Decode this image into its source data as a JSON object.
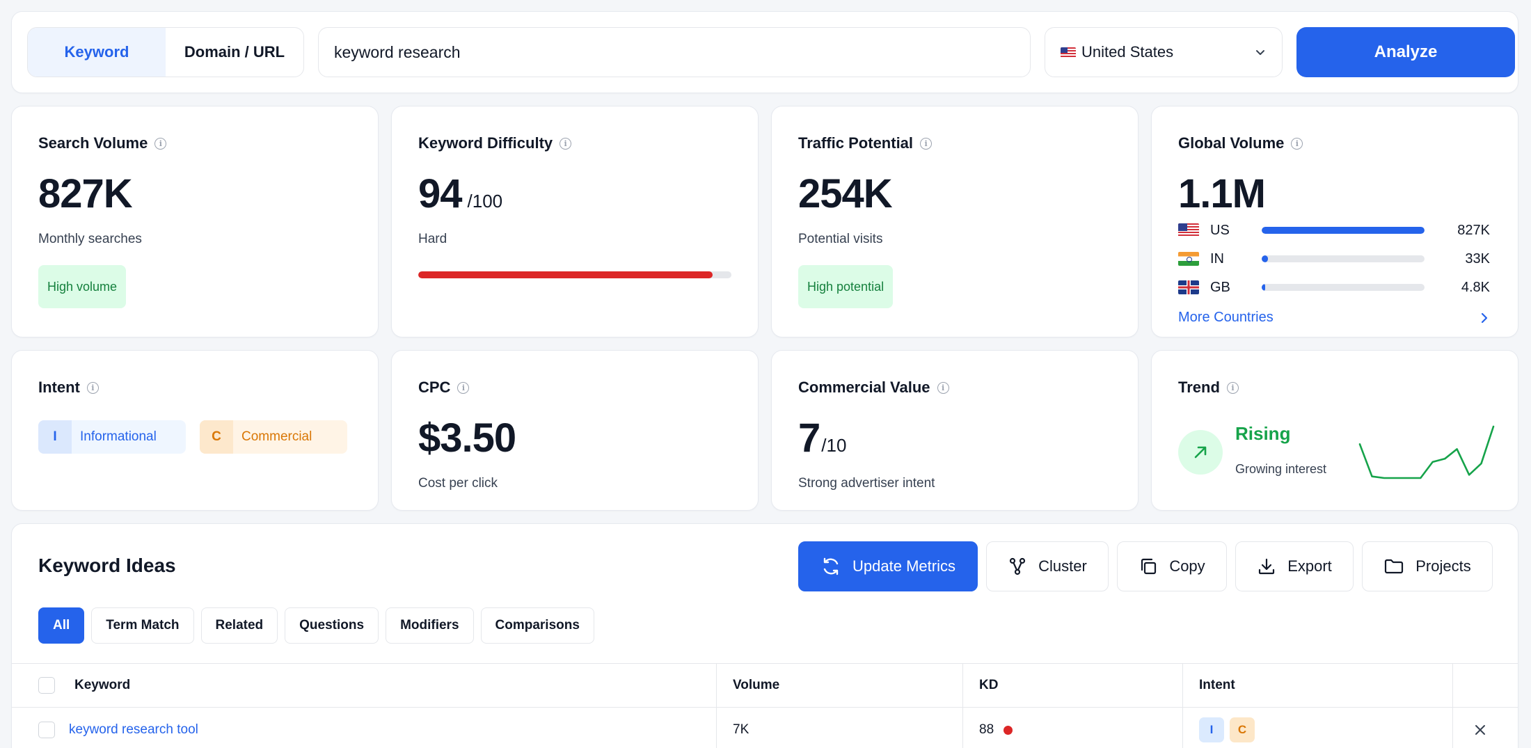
{
  "search": {
    "modes": [
      "Keyword",
      "Domain / URL"
    ],
    "active_mode": "Keyword",
    "query": "keyword research",
    "country": "United States",
    "analyze_label": "Analyze"
  },
  "metrics": {
    "search_volume": {
      "label": "Search Volume",
      "value": "827K",
      "sub": "Monthly searches",
      "badge": "High volume"
    },
    "keyword_difficulty": {
      "label": "Keyword Difficulty",
      "value": "94",
      "of": "/100",
      "sub": "Hard",
      "score": 94,
      "max": 100
    },
    "traffic_potential": {
      "label": "Traffic Potential",
      "value": "254K",
      "sub": "Potential visits",
      "badge": "High potential"
    },
    "global_volume": {
      "label": "Global Volume",
      "value": "1.1M",
      "countries": [
        {
          "code": "US",
          "value": "827K",
          "share": 1.0
        },
        {
          "code": "IN",
          "value": "33K",
          "share": 0.04
        },
        {
          "code": "GB",
          "value": "4.8K",
          "share": 0.006
        }
      ],
      "more_label": "More Countries"
    },
    "intent": {
      "label": "Intent",
      "tags": [
        {
          "letter": "I",
          "name": "Informational"
        },
        {
          "letter": "C",
          "name": "Commercial"
        }
      ]
    },
    "cpc": {
      "label": "CPC",
      "value": "$3.50",
      "sub": "Cost per click"
    },
    "commercial_value": {
      "label": "Commercial Value",
      "value": "7",
      "of": "/10",
      "sub": "Strong advertiser intent"
    },
    "trend": {
      "label": "Trend",
      "status": "Rising",
      "sub": "Growing interest",
      "sparkline": [
        46,
        6,
        4,
        4,
        4,
        4,
        24,
        28,
        40,
        8,
        22,
        68
      ]
    }
  },
  "ideas": {
    "title": "Keyword Ideas",
    "toolbar": {
      "update": "Update Metrics",
      "cluster": "Cluster",
      "copy": "Copy",
      "export": "Export",
      "projects": "Projects"
    },
    "filters": [
      "All",
      "Term Match",
      "Related",
      "Questions",
      "Modifiers",
      "Comparisons"
    ],
    "active_filter": "All",
    "columns": {
      "keyword": "Keyword",
      "volume": "Volume",
      "kd": "KD",
      "intent": "Intent"
    },
    "rows": [
      {
        "keyword": "keyword research tool",
        "volume": "7K",
        "kd": "88",
        "intent": [
          "I",
          "C"
        ]
      }
    ]
  },
  "colors": {
    "accent": "#2563eb",
    "danger": "#dc2626",
    "success": "#16a34a",
    "success_bg": "#dcfce7"
  }
}
